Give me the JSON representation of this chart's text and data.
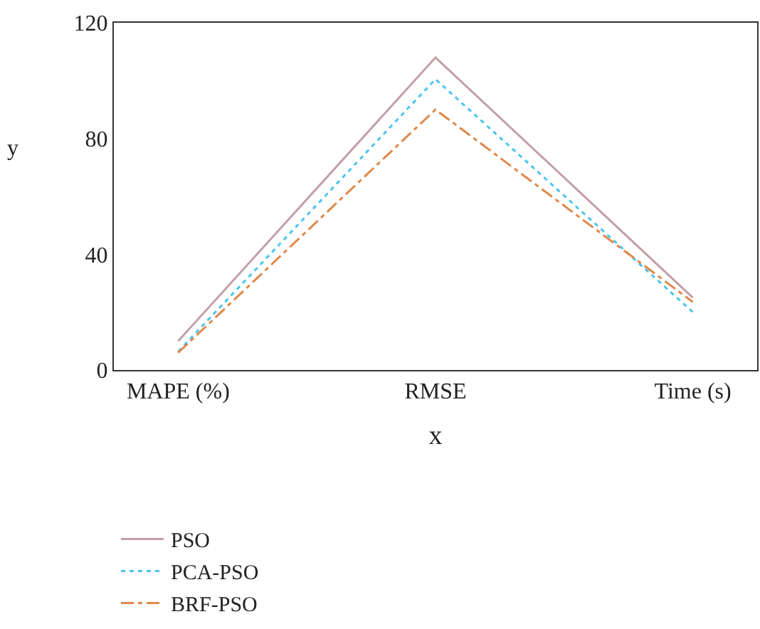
{
  "chart_data": {
    "type": "line",
    "xlabel": "x",
    "ylabel": "y",
    "categories": [
      "MAPE (%)",
      "RMSE",
      "Time (s)"
    ],
    "series": [
      {
        "name": "PSO",
        "color": "#c49ea6",
        "line_style": "solid",
        "values": [
          10,
          108,
          25
        ]
      },
      {
        "name": "PCA-PSO",
        "color": "#4cc4f0",
        "line_style": "dotted",
        "values": [
          6.4,
          100.5,
          20
        ]
      },
      {
        "name": "BRF-PSO",
        "color": "#e0884a",
        "line_style": "dashdot",
        "values": [
          6,
          90,
          23.5
        ]
      }
    ],
    "ylim": [
      0,
      120
    ],
    "yticks": [
      0,
      40,
      80,
      120
    ],
    "legend": "bottom left",
    "marker": "none"
  }
}
